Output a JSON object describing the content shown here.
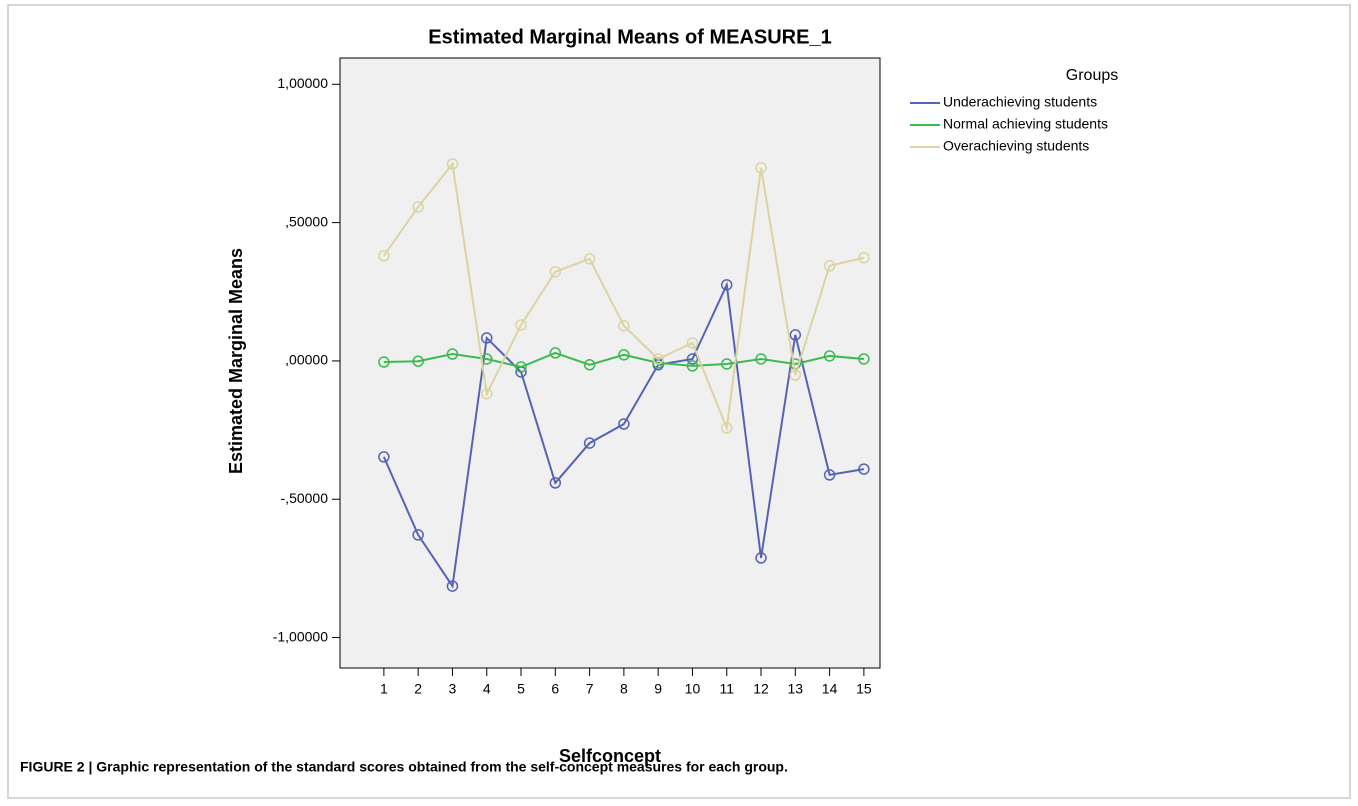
{
  "chart_data": {
    "type": "line",
    "title": "Estimated Marginal Means of MEASURE_1",
    "x_label": "Selfconcept",
    "y_label": "Estimated Marginal Means",
    "legend_title": "Groups",
    "caption": "FIGURE 2 | Graphic representation of the standard scores obtained from the self-concept measures for each group.",
    "x": [
      1,
      2,
      3,
      4,
      5,
      6,
      7,
      8,
      9,
      10,
      11,
      12,
      13,
      14,
      15
    ],
    "xlim": [
      -0.28,
      15.47
    ],
    "xticks": [
      1,
      2,
      3,
      4,
      5,
      6,
      7,
      8,
      9,
      10,
      11,
      12,
      13,
      14,
      15
    ],
    "ylim": [
      -1.11,
      1.095
    ],
    "yticks": [
      {
        "value": 1,
        "label": "1,00000"
      },
      {
        "value": 0.5,
        "label": ",50000"
      },
      {
        "value": 0,
        "label": ",00000"
      },
      {
        "value": -0.5,
        "label": "-,50000"
      },
      {
        "value": -1,
        "label": "-1,00000"
      }
    ],
    "legend": "right",
    "series": [
      {
        "name": "Underachieving students",
        "color": "#5563b5",
        "values": [
          -0.347,
          -0.629,
          -0.814,
          0.083,
          -0.04,
          -0.441,
          -0.297,
          -0.228,
          -0.014,
          0.007,
          0.275,
          -0.712,
          0.094,
          -0.412,
          -0.391
        ]
      },
      {
        "name": "Normal achieving students",
        "color": "#3cba50",
        "values": [
          -0.004,
          -0.001,
          0.025,
          0.007,
          -0.022,
          0.029,
          -0.014,
          0.022,
          -0.007,
          -0.018,
          -0.011,
          0.007,
          -0.011,
          0.018,
          0.007
        ]
      },
      {
        "name": "Overachieving students",
        "color": "#ddd3a2",
        "values": [
          0.38,
          0.557,
          0.712,
          -0.119,
          0.13,
          0.322,
          0.369,
          0.127,
          0.007,
          0.065,
          -0.242,
          0.698,
          -0.051,
          0.344,
          0.373
        ]
      }
    ]
  }
}
